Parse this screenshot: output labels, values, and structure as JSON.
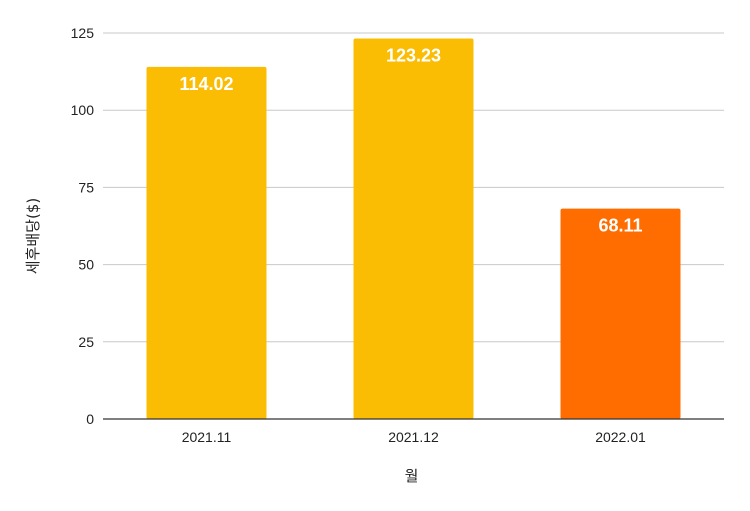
{
  "chart_data": {
    "type": "bar",
    "categories": [
      "2021.11",
      "2021.12",
      "2022.01"
    ],
    "values": [
      114.02,
      123.23,
      68.11
    ],
    "value_labels": [
      "114.02",
      "123.23",
      "68.11"
    ],
    "bar_colors": [
      "#FBBC04",
      "#FBBC04",
      "#FF6D01"
    ],
    "xlabel": "월",
    "ylabel": "세후배당($)",
    "ylim": [
      0,
      125
    ],
    "yticks": [
      0,
      25,
      50,
      75,
      100,
      125
    ],
    "grid": true,
    "legend": "none"
  }
}
